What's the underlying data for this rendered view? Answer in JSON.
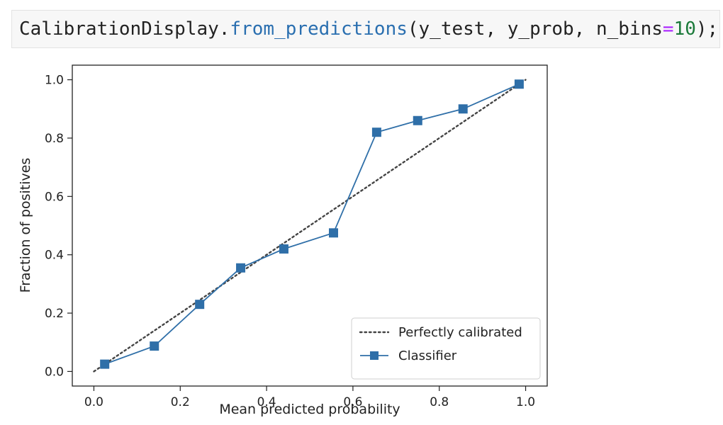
{
  "code": {
    "object": "CalibrationDisplay",
    "dot": ".",
    "method": "from_predictions",
    "open_paren": "(",
    "args": "y_test, y_prob, n_bins",
    "equals": "=",
    "value": "10",
    "close": ");"
  },
  "chart_data": {
    "type": "line",
    "title": "",
    "xlabel": "Mean predicted probability",
    "ylabel": "Fraction of positives",
    "xlim": [
      -0.05,
      1.05
    ],
    "ylim": [
      -0.05,
      1.05
    ],
    "xticks": [
      0.0,
      0.2,
      0.4,
      0.6,
      0.8,
      1.0
    ],
    "xtick_labels": [
      "0.0",
      "0.2",
      "0.4",
      "0.6",
      "0.8",
      "1.0"
    ],
    "yticks": [
      0.0,
      0.2,
      0.4,
      0.6,
      0.8,
      1.0
    ],
    "ytick_labels": [
      "0.0",
      "0.2",
      "0.4",
      "0.6",
      "0.8",
      "1.0"
    ],
    "grid": false,
    "legend_position": "lower-right",
    "series": [
      {
        "name": "Perfectly calibrated",
        "style": "dotted",
        "color": "#444444",
        "x": [
          0.0,
          1.0
        ],
        "y": [
          0.0,
          1.0
        ]
      },
      {
        "name": "Classifier",
        "style": "solid-square-markers",
        "color": "#2f6fa8",
        "x": [
          0.025,
          0.14,
          0.245,
          0.34,
          0.44,
          0.555,
          0.655,
          0.75,
          0.855,
          0.985
        ],
        "y": [
          0.025,
          0.087,
          0.23,
          0.355,
          0.42,
          0.475,
          0.82,
          0.86,
          0.9,
          0.985
        ]
      }
    ]
  }
}
